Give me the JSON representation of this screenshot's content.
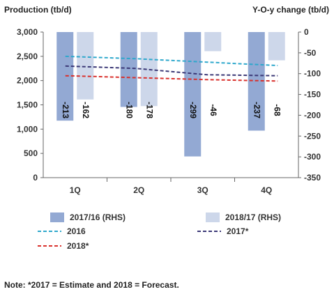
{
  "chart_data": {
    "type": "bar",
    "title": "",
    "ylabel_left": "Production (tb/d)",
    "ylabel_right": "Y-O-y change (tb/d)",
    "categories": [
      "1Q",
      "2Q",
      "3Q",
      "4Q"
    ],
    "left_axis": {
      "ylim": [
        0,
        3000
      ],
      "ticks": [
        "0",
        "500",
        "1,000",
        "1,500",
        "2,000",
        "2,500",
        "3,000"
      ]
    },
    "right_axis": {
      "ylim": [
        -350,
        0
      ],
      "ticks": [
        "0",
        "-50",
        "-100",
        "-150",
        "-200",
        "-250",
        "-300",
        "-350"
      ]
    },
    "bar_series": [
      {
        "name": "2017/16 (RHS)",
        "axis": "right",
        "color": "#93a9d3",
        "values": [
          -213,
          -180,
          -299,
          -237
        ],
        "labels": [
          "-213",
          "-180",
          "-299",
          "-237"
        ]
      },
      {
        "name": "2018/17 (RHS)",
        "axis": "right",
        "color": "#cdd7ea",
        "values": [
          -162,
          -178,
          -46,
          -68
        ],
        "labels": [
          "-162",
          "-178",
          "-46",
          "-68"
        ]
      }
    ],
    "line_series": [
      {
        "name": "2016",
        "axis": "left",
        "color": "#2ea8cc",
        "style": "dashed",
        "values": [
          2500,
          2450,
          2380,
          2310
        ]
      },
      {
        "name": "2017*",
        "axis": "left",
        "color": "#3b3876",
        "style": "dashed",
        "values": [
          2300,
          2250,
          2120,
          2100
        ]
      },
      {
        "name": "2018*",
        "axis": "left",
        "color": "#d9302c",
        "style": "dashed",
        "values": [
          2100,
          2060,
          2020,
          1990
        ]
      }
    ],
    "legend_position": "bottom",
    "grid": false
  },
  "note": "Note: *2017 = Estimate and 2018 = Forecast."
}
